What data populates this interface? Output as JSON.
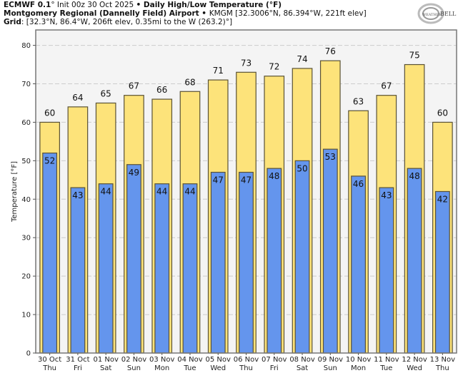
{
  "header": {
    "line1": {
      "model": "ECMWF 0.1",
      "model_unit": "°",
      "init": " Init 00z 30 Oct 2025 ",
      "sep": "•",
      "title": " Daily High/Low Temperature (°F)"
    },
    "line2": {
      "station": "Montgomery Regional (Dannelly Field) Airport",
      "sep": " • ",
      "details": "KMGM [32.3006°N, 86.394°W, 221ft elev]"
    },
    "line3": {
      "label": "Grid",
      "details": ": [32.3°N, 86.4°W, 206ft elev, 0.35mi to the W (263.2)°]"
    }
  },
  "logo": {
    "name": "WeatherBELL",
    "text_left": "WEATHER",
    "text_right": "BELL"
  },
  "colors": {
    "high": "#fde37a",
    "low": "#6495ed",
    "bar_edge": "#5a5235",
    "plot_bg": "#f4f4f4",
    "grid": "#cccccc"
  },
  "chart_data": {
    "type": "bar",
    "title": "Daily High/Low Temperature (°F)",
    "xlabel": "",
    "ylabel": "Temperature [°F]",
    "ylim": [
      0,
      84
    ],
    "yticks": [
      0,
      10,
      20,
      30,
      40,
      50,
      60,
      70,
      80
    ],
    "grid": true,
    "categories": [
      "30 Oct",
      "31 Oct",
      "01 Nov",
      "02 Nov",
      "03 Nov",
      "04 Nov",
      "05 Nov",
      "06 Nov",
      "07 Nov",
      "08 Nov",
      "09 Nov",
      "10 Nov",
      "11 Nov",
      "12 Nov",
      "13 Nov"
    ],
    "weekdays": [
      "Thu",
      "Fri",
      "Sat",
      "Sun",
      "Mon",
      "Tue",
      "Wed",
      "Thu",
      "Fri",
      "Sat",
      "Sun",
      "Mon",
      "Tue",
      "Wed",
      "Thu"
    ],
    "series": [
      {
        "name": "High",
        "values": [
          60,
          64,
          65,
          67,
          66,
          68,
          71,
          73,
          72,
          74,
          76,
          63,
          67,
          75,
          60
        ]
      },
      {
        "name": "Low",
        "values": [
          52,
          43,
          44,
          49,
          44,
          44,
          47,
          47,
          48,
          50,
          53,
          46,
          43,
          48,
          42
        ]
      }
    ]
  }
}
